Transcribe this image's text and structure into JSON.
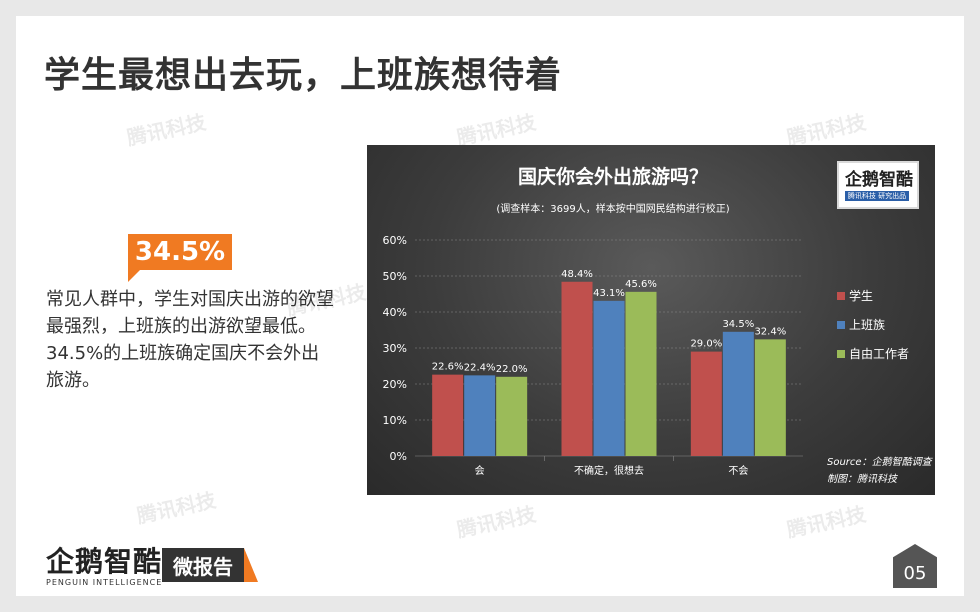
{
  "page": {
    "title": "学生最想出去玩，上班族想待着",
    "highlight": "34.5%",
    "description": "常见人群中，学生对国庆出游的欲望最强烈，上班族的出游欲望最低。34.5%的上班族确定国庆不会外出旅游。",
    "watermark": "腾讯科技",
    "page_number": "05"
  },
  "logo": {
    "brand": "企鹅智酷",
    "english": "PENGUIN INTELLIGENCE",
    "report_tag": "微报告",
    "panel_brand": "企鹅智酷",
    "panel_sub": "腾讯科技  研究出品"
  },
  "chart_data": {
    "type": "bar",
    "title": "国庆你会外出旅游吗？",
    "subtitle": "(调查样本：3699人，样本按中国网民结构进行校正)",
    "categories": [
      "会",
      "不确定，很想去",
      "不会"
    ],
    "series": [
      {
        "name": "学生",
        "values": [
          22.6,
          48.4,
          29.0
        ],
        "color": "#c0504d"
      },
      {
        "name": "上班族",
        "values": [
          22.4,
          43.1,
          34.5
        ],
        "color": "#4f81bd"
      },
      {
        "name": "自由工作者",
        "values": [
          22.0,
          45.6,
          32.4
        ],
        "color": "#9bbb59"
      }
    ],
    "value_labels": [
      [
        "22.6%",
        "48.4%",
        "29.0%"
      ],
      [
        "22.4%",
        "43.1%",
        "34.5%"
      ],
      [
        "22.0%",
        "45.6%",
        "32.4%"
      ]
    ],
    "yticks": [
      "0%",
      "10%",
      "20%",
      "30%",
      "40%",
      "50%",
      "60%"
    ],
    "ylim": [
      0,
      60
    ],
    "legend_position": "right",
    "source": "Source：企鹅智酷调查",
    "credit": "制图：腾讯科技"
  }
}
